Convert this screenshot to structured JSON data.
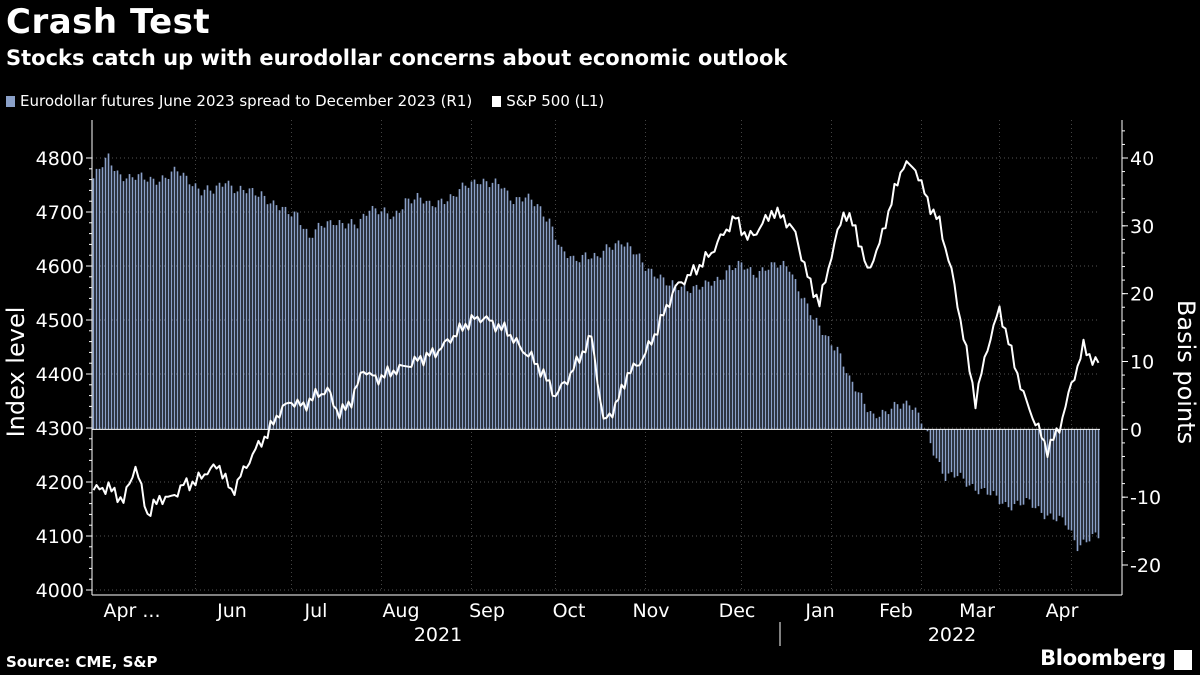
{
  "chart_data": {
    "type": "bar+line",
    "title": "Crash Test",
    "subtitle": "Stocks catch up with eurodollar concerns about economic outlook",
    "source": "Source: CME, S&P",
    "brand": "Bloomberg",
    "left_axis": {
      "label": "Index level",
      "min": 4000,
      "max": 4800,
      "ticks": [
        4000,
        4100,
        4200,
        4300,
        4400,
        4500,
        4600,
        4700,
        4800
      ]
    },
    "right_axis": {
      "label": "Basis points",
      "min": -20,
      "max": 40,
      "ticks": [
        -20,
        -10,
        0,
        10,
        20,
        30,
        40
      ]
    },
    "x_axis": {
      "month_labels": [
        "Apr ...",
        "Jun",
        "Jul",
        "Aug",
        "Sep",
        "Oct",
        "Nov",
        "Dec",
        "Jan",
        "Feb",
        "Mar",
        "Apr"
      ],
      "year_labels": [
        "2021",
        "2022"
      ]
    },
    "series": [
      {
        "name": "Eurodollar futures June 2023 spread to December 2023 (R1)",
        "type": "bar",
        "axis": "right",
        "color": "#8aa0c8",
        "anchors": [
          [
            0,
            37
          ],
          [
            5,
            40
          ],
          [
            8,
            38
          ],
          [
            12,
            37
          ],
          [
            16,
            37
          ],
          [
            20,
            37
          ],
          [
            24,
            37
          ],
          [
            28,
            38
          ],
          [
            32,
            37
          ],
          [
            36,
            35
          ],
          [
            40,
            35
          ],
          [
            44,
            37
          ],
          [
            48,
            35
          ],
          [
            52,
            35
          ],
          [
            56,
            35
          ],
          [
            60,
            33
          ],
          [
            64,
            32
          ],
          [
            68,
            32
          ],
          [
            72,
            28
          ],
          [
            76,
            30
          ],
          [
            80,
            31
          ],
          [
            84,
            30
          ],
          [
            88,
            30
          ],
          [
            92,
            33
          ],
          [
            96,
            32
          ],
          [
            100,
            31
          ],
          [
            104,
            34
          ],
          [
            108,
            34
          ],
          [
            112,
            33
          ],
          [
            116,
            34
          ],
          [
            120,
            34
          ],
          [
            124,
            36
          ],
          [
            128,
            37
          ],
          [
            132,
            36
          ],
          [
            136,
            36
          ],
          [
            140,
            34
          ],
          [
            144,
            34
          ],
          [
            148,
            33
          ],
          [
            152,
            31
          ],
          [
            156,
            26
          ],
          [
            160,
            25
          ],
          [
            164,
            26
          ],
          [
            168,
            25
          ],
          [
            172,
            27
          ],
          [
            176,
            28
          ],
          [
            180,
            26
          ],
          [
            184,
            24
          ],
          [
            188,
            23
          ],
          [
            192,
            21
          ],
          [
            196,
            21
          ],
          [
            200,
            21
          ],
          [
            204,
            21
          ],
          [
            208,
            22
          ],
          [
            212,
            24
          ],
          [
            216,
            24
          ],
          [
            220,
            23
          ],
          [
            224,
            24
          ],
          [
            228,
            24
          ],
          [
            232,
            24
          ],
          [
            236,
            20
          ],
          [
            240,
            16
          ],
          [
            244,
            14
          ],
          [
            248,
            12
          ],
          [
            252,
            7
          ],
          [
            256,
            5
          ],
          [
            260,
            2
          ],
          [
            264,
            2
          ],
          [
            268,
            4
          ],
          [
            272,
            4
          ],
          [
            276,
            1
          ],
          [
            280,
            -3
          ],
          [
            284,
            -7
          ],
          [
            288,
            -7
          ],
          [
            292,
            -8
          ],
          [
            296,
            -9
          ],
          [
            300,
            -10
          ],
          [
            304,
            -11
          ],
          [
            308,
            -11
          ],
          [
            312,
            -11
          ],
          [
            316,
            -12
          ],
          [
            320,
            -13
          ],
          [
            324,
            -14
          ],
          [
            328,
            -17
          ],
          [
            332,
            -16
          ],
          [
            335,
            -16
          ]
        ]
      },
      {
        "name": "S&P 500 (L1)",
        "type": "line",
        "axis": "left",
        "color": "#ffffff",
        "anchors": [
          [
            0,
            4185
          ],
          [
            5,
            4190
          ],
          [
            10,
            4165
          ],
          [
            14,
            4230
          ],
          [
            18,
            4140
          ],
          [
            22,
            4170
          ],
          [
            26,
            4170
          ],
          [
            30,
            4195
          ],
          [
            34,
            4200
          ],
          [
            38,
            4220
          ],
          [
            42,
            4230
          ],
          [
            46,
            4180
          ],
          [
            50,
            4220
          ],
          [
            54,
            4260
          ],
          [
            58,
            4290
          ],
          [
            62,
            4330
          ],
          [
            66,
            4350
          ],
          [
            70,
            4340
          ],
          [
            74,
            4360
          ],
          [
            78,
            4370
          ],
          [
            82,
            4325
          ],
          [
            86,
            4350
          ],
          [
            90,
            4410
          ],
          [
            94,
            4390
          ],
          [
            98,
            4400
          ],
          [
            102,
            4410
          ],
          [
            106,
            4420
          ],
          [
            110,
            4430
          ],
          [
            114,
            4440
          ],
          [
            118,
            4460
          ],
          [
            122,
            4480
          ],
          [
            126,
            4500
          ],
          [
            130,
            4505
          ],
          [
            134,
            4490
          ],
          [
            138,
            4480
          ],
          [
            142,
            4450
          ],
          [
            146,
            4430
          ],
          [
            150,
            4400
          ],
          [
            154,
            4360
          ],
          [
            158,
            4390
          ],
          [
            162,
            4430
          ],
          [
            166,
            4470
          ],
          [
            170,
            4310
          ],
          [
            174,
            4340
          ],
          [
            178,
            4400
          ],
          [
            182,
            4420
          ],
          [
            186,
            4460
          ],
          [
            190,
            4510
          ],
          [
            194,
            4560
          ],
          [
            198,
            4580
          ],
          [
            202,
            4600
          ],
          [
            206,
            4625
          ],
          [
            210,
            4660
          ],
          [
            214,
            4690
          ],
          [
            218,
            4650
          ],
          [
            222,
            4670
          ],
          [
            226,
            4700
          ],
          [
            230,
            4690
          ],
          [
            234,
            4660
          ],
          [
            238,
            4580
          ],
          [
            242,
            4530
          ],
          [
            246,
            4620
          ],
          [
            250,
            4700
          ],
          [
            254,
            4670
          ],
          [
            258,
            4590
          ],
          [
            262,
            4640
          ],
          [
            266,
            4720
          ],
          [
            270,
            4790
          ],
          [
            274,
            4780
          ],
          [
            278,
            4720
          ],
          [
            282,
            4680
          ],
          [
            286,
            4590
          ],
          [
            290,
            4470
          ],
          [
            294,
            4350
          ],
          [
            298,
            4450
          ],
          [
            302,
            4520
          ],
          [
            306,
            4440
          ],
          [
            310,
            4360
          ],
          [
            314,
            4310
          ],
          [
            318,
            4260
          ],
          [
            322,
            4300
          ],
          [
            326,
            4380
          ],
          [
            330,
            4450
          ],
          [
            334,
            4420
          ]
        ]
      }
    ]
  }
}
